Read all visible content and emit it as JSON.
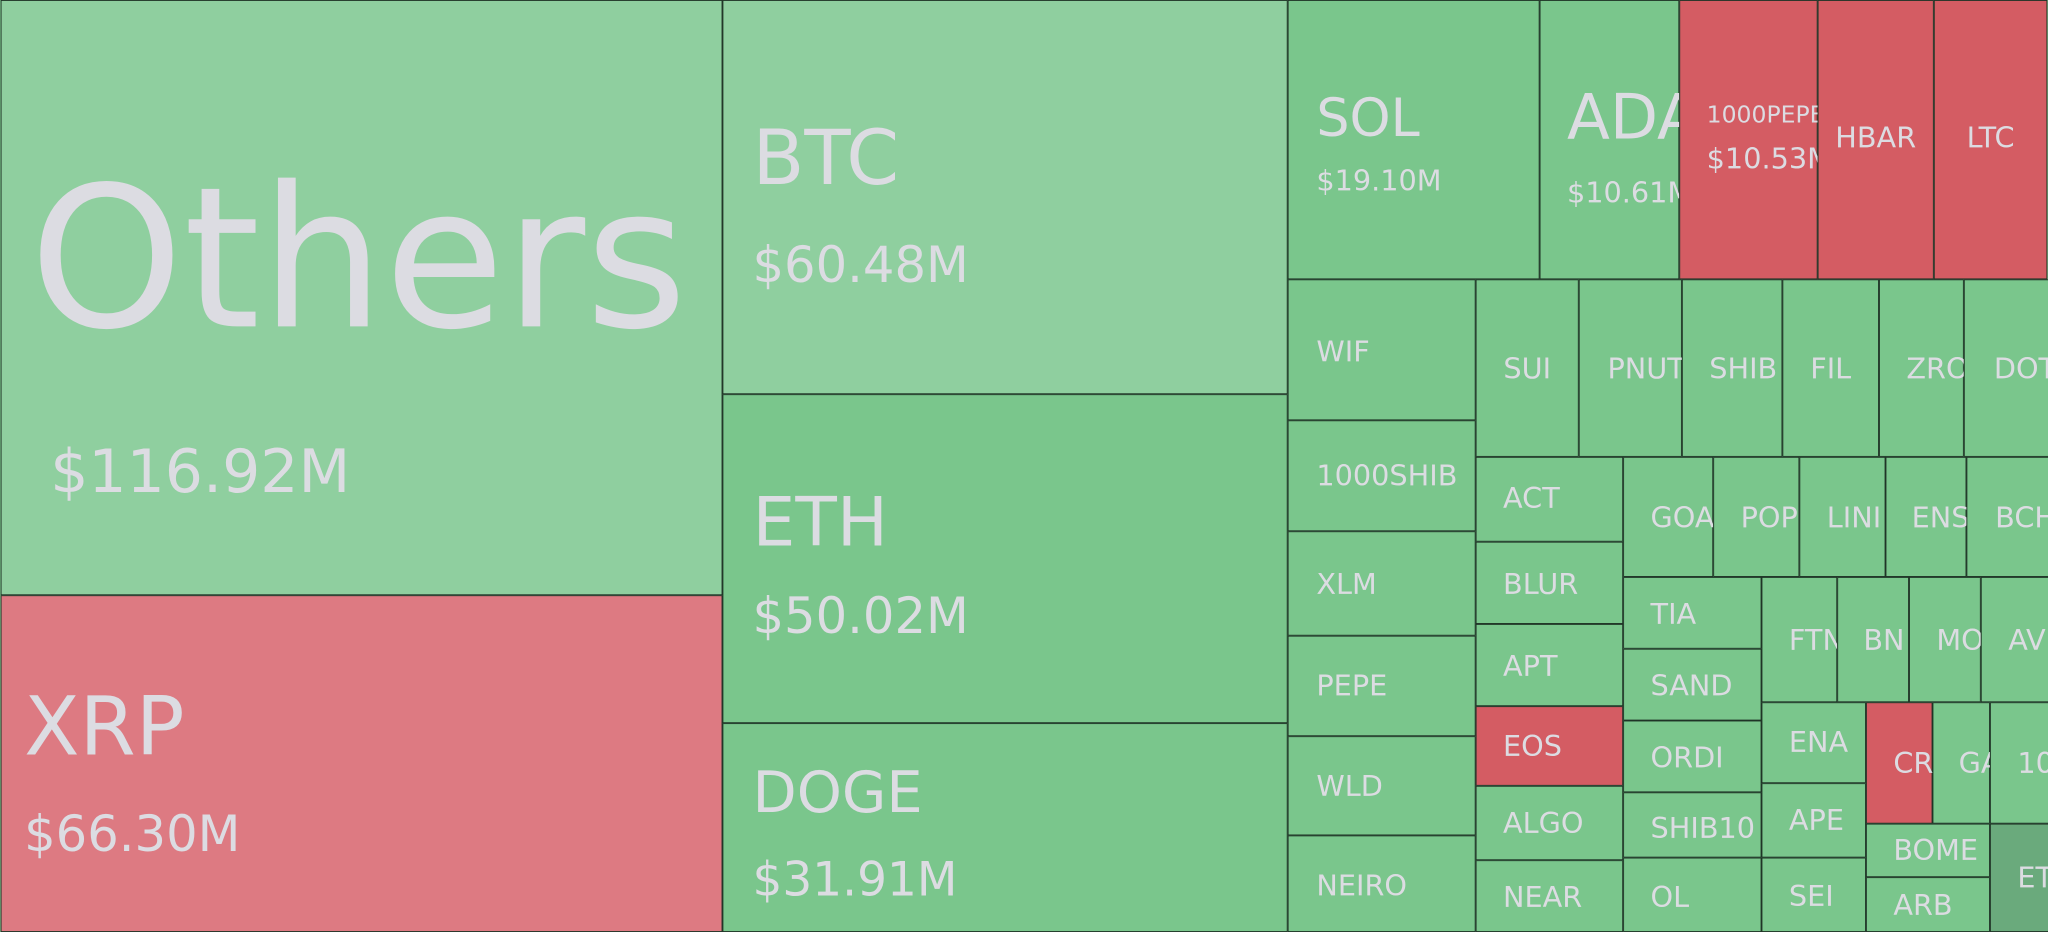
{
  "tiles": [
    {
      "label": "Others",
      "value": "$116.92M"
    },
    {
      "label": "XRP",
      "value": "$66.30M"
    },
    {
      "label": "BTC",
      "value": "$60.48M"
    },
    {
      "label": "ETH",
      "value": "$50.02M"
    },
    {
      "label": "DOGE",
      "value": "$31.91M"
    },
    {
      "label": "SOL",
      "value": "$19.10M"
    },
    {
      "label": "ADA",
      "value": "$10.61M"
    },
    {
      "label": "1000PEPE",
      "value": "$10.53M"
    },
    {
      "label": "HBAR"
    },
    {
      "label": "LTC"
    },
    {
      "label": "WIF"
    },
    {
      "label": "1000SHIB"
    },
    {
      "label": "XLM"
    },
    {
      "label": "PEPE"
    },
    {
      "label": "WLD"
    },
    {
      "label": "NEIRO"
    },
    {
      "label": "SUI"
    },
    {
      "label": "PNUT"
    },
    {
      "label": "SHIB"
    },
    {
      "label": "FIL"
    },
    {
      "label": "ZRO"
    },
    {
      "label": "DOT"
    },
    {
      "label": "ACT"
    },
    {
      "label": "BLUR"
    },
    {
      "label": "APT"
    },
    {
      "label": "EOS"
    },
    {
      "label": "ALGO"
    },
    {
      "label": "NEAR"
    },
    {
      "label": "GOA"
    },
    {
      "label": "POP"
    },
    {
      "label": "LINI"
    },
    {
      "label": "ENS"
    },
    {
      "label": "BCH"
    },
    {
      "label": "TIA"
    },
    {
      "label": "SAND"
    },
    {
      "label": "ORDI"
    },
    {
      "label": "SHIB10"
    },
    {
      "label": "OL"
    },
    {
      "label": "FTN"
    },
    {
      "label": "BN"
    },
    {
      "label": "MO"
    },
    {
      "label": "AV"
    },
    {
      "label": "ENA"
    },
    {
      "label": "APE"
    },
    {
      "label": "SEI"
    },
    {
      "label": "CR"
    },
    {
      "label": "GA"
    },
    {
      "label": "10"
    },
    {
      "label": "BOME"
    },
    {
      "label": "ARB"
    },
    {
      "label": "ET"
    }
  ]
}
